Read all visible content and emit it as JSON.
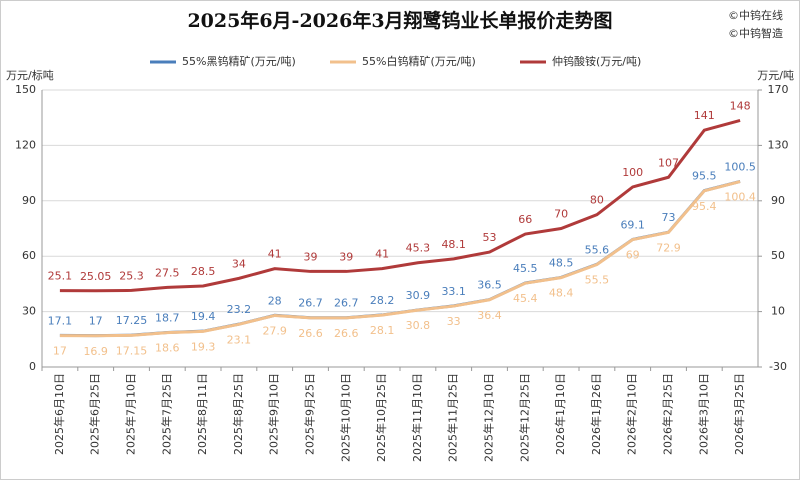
{
  "chart_data": {
    "type": "line",
    "title": "2025年6月-2026年3月翔鹭钨业长单报价走势图",
    "annotations": [
      "©中钨在线",
      "©中钨智造"
    ],
    "ylabel": "万元/标吨",
    "y2label": "万元/吨",
    "categories": [
      "2025年6月10日",
      "2025年6月25日",
      "2025年7月10日",
      "2025年7月25日",
      "2025年8月11日",
      "2025年8月25日",
      "2025年9月10日",
      "2025年9月25日",
      "2025年10月10日",
      "2025年10月25日",
      "2025年11月10日",
      "2025年11月25日",
      "2025年12月10日",
      "2025年12月25日",
      "2026年1月10日",
      "2026年1月26日",
      "2026年2月10日",
      "2026年2月25日",
      "2026年3月10日",
      "2026年3月25日"
    ],
    "ylim": [
      0,
      150
    ],
    "yticks": [
      0,
      30,
      60,
      90,
      120,
      150
    ],
    "y2lim": [
      -30,
      170
    ],
    "y2ticks": [
      -30,
      10,
      50,
      90,
      130,
      170
    ],
    "grid": true,
    "series": [
      {
        "name": "55%黑钨精矿(万元/吨)",
        "color": "#4a7ebb",
        "label_pos": "above",
        "values": [
          17.1,
          17,
          17.25,
          18.7,
          19.4,
          23.2,
          28,
          26.7,
          26.7,
          28.2,
          30.9,
          33.1,
          36.5,
          45.5,
          48.5,
          55.6,
          69.1,
          73,
          95.5,
          100.5
        ]
      },
      {
        "name": "55%白钨精矿(万元/吨)",
        "color": "#f2c08c",
        "label_pos": "below",
        "values": [
          17,
          16.9,
          17.15,
          18.6,
          19.3,
          23.1,
          27.9,
          26.6,
          26.6,
          28.1,
          30.8,
          33,
          36.4,
          45.4,
          48.4,
          55.5,
          69,
          72.9,
          95.4,
          100.4
        ]
      },
      {
        "name": "仲钨酸铵(万元/吨)",
        "color": "#b03a3a",
        "axis": "y2",
        "label_pos": "above",
        "values": [
          25.1,
          25.05,
          25.3,
          27.5,
          28.5,
          34,
          41,
          39,
          39,
          41,
          45.3,
          48.1,
          53,
          66,
          70,
          80,
          100,
          107,
          141,
          148
        ]
      }
    ]
  }
}
